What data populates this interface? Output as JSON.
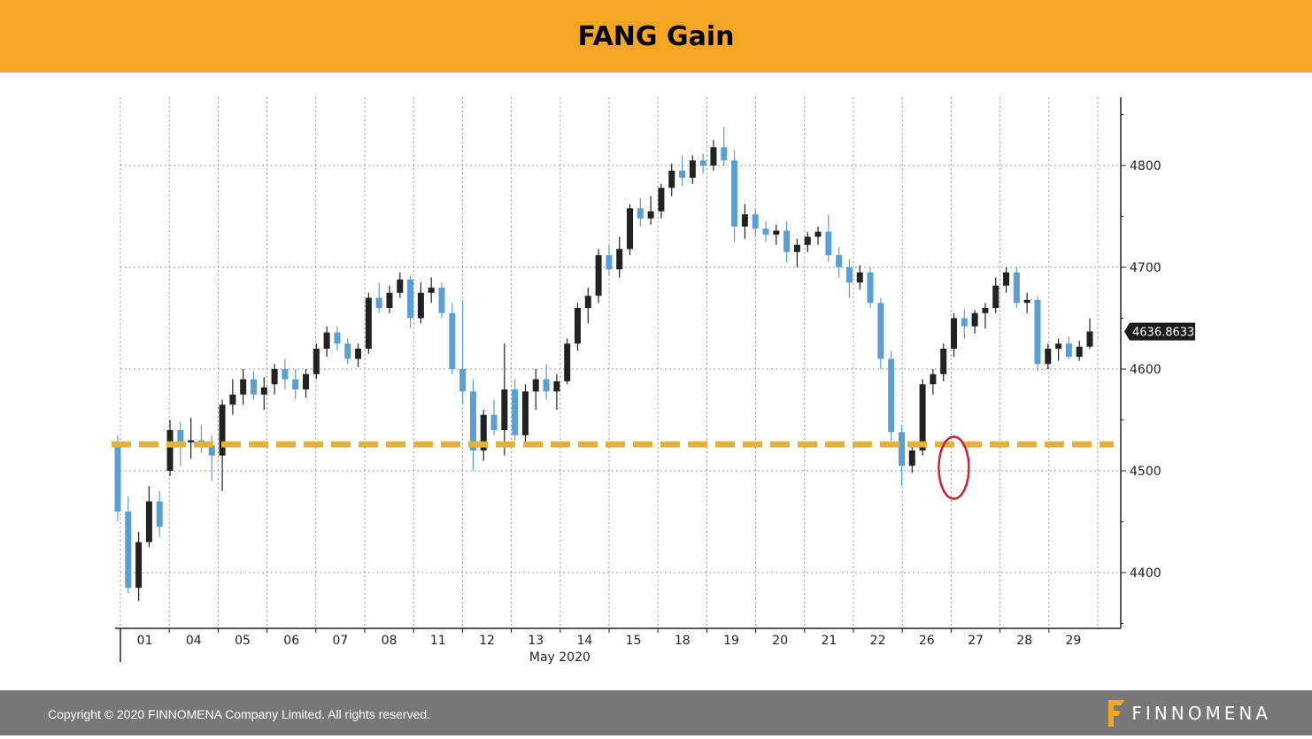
{
  "header": {
    "title": "FANG Gain"
  },
  "footer": {
    "copyright": "Copyright © 2020 FINNOMENA Company Limited. All rights reserved.",
    "logo_text": "FINNOMENA",
    "logo_color": "#f5a623"
  },
  "colors": {
    "header_bg": "#f5a623",
    "footer_bg": "#777777",
    "up_color": "#5a9fd4",
    "down_color": "#222222",
    "support_line": "#e3b23c",
    "highlight_circle": "#cc2233",
    "last_price_bg": "#1a1a1a"
  },
  "chart_data": {
    "type": "candlestick",
    "xlabel": "May 2020",
    "categories": [
      "01",
      "04",
      "05",
      "06",
      "07",
      "08",
      "11",
      "12",
      "13",
      "14",
      "15",
      "18",
      "19",
      "20",
      "21",
      "22",
      "26",
      "27",
      "28",
      "29"
    ],
    "ylim": [
      4345,
      4855
    ],
    "yticks": [
      4400,
      4500,
      4600,
      4700,
      4800
    ],
    "last_price_label": "4636.8633",
    "support_level": 4526,
    "highlight": {
      "category": "27",
      "value": 4503
    },
    "grid": true,
    "series": [
      {
        "values": [
          [
            4525,
            4535,
            4450,
            4460
          ],
          [
            4460,
            4475,
            4380,
            4385
          ],
          [
            4385,
            4440,
            4372,
            4430
          ],
          [
            4430,
            4485,
            4425,
            4470
          ],
          [
            4470,
            4480,
            4435,
            4445
          ],
          [
            4500,
            4550,
            4495,
            4540
          ],
          [
            4540,
            4548,
            4505,
            4528
          ],
          [
            4528,
            4552,
            4512,
            4530
          ],
          [
            4530,
            4545,
            4518,
            4525
          ],
          [
            4525,
            4535,
            4490,
            4515
          ],
          [
            4515,
            4570,
            4480,
            4565
          ],
          [
            4565,
            4590,
            4555,
            4575
          ],
          [
            4575,
            4600,
            4565,
            4590
          ],
          [
            4590,
            4598,
            4570,
            4575
          ],
          [
            4575,
            4592,
            4560,
            4582
          ],
          [
            4585,
            4605,
            4575,
            4600
          ],
          [
            4600,
            4610,
            4580,
            4590
          ],
          [
            4590,
            4600,
            4570,
            4580
          ],
          [
            4580,
            4600,
            4572,
            4595
          ],
          [
            4595,
            4625,
            4590,
            4620
          ],
          [
            4620,
            4642,
            4612,
            4636
          ],
          [
            4636,
            4642,
            4618,
            4625
          ],
          [
            4625,
            4630,
            4605,
            4610
          ],
          [
            4610,
            4625,
            4602,
            4620
          ],
          [
            4620,
            4675,
            4615,
            4670
          ],
          [
            4670,
            4685,
            4655,
            4660
          ],
          [
            4660,
            4682,
            4655,
            4675
          ],
          [
            4675,
            4695,
            4670,
            4688
          ],
          [
            4688,
            4692,
            4640,
            4650
          ],
          [
            4650,
            4685,
            4645,
            4675
          ],
          [
            4675,
            4690,
            4665,
            4680
          ],
          [
            4680,
            4685,
            4650,
            4655
          ],
          [
            4655,
            4665,
            4595,
            4600
          ],
          [
            4600,
            4668,
            4565,
            4578
          ],
          [
            4578,
            4590,
            4500,
            4520
          ],
          [
            4520,
            4560,
            4510,
            4555
          ],
          [
            4555,
            4570,
            4535,
            4540
          ],
          [
            4540,
            4625,
            4515,
            4580
          ],
          [
            4580,
            4590,
            4530,
            4535
          ],
          [
            4535,
            4585,
            4528,
            4578
          ],
          [
            4578,
            4600,
            4560,
            4590
          ],
          [
            4590,
            4605,
            4570,
            4578
          ],
          [
            4578,
            4595,
            4560,
            4588
          ],
          [
            4588,
            4630,
            4585,
            4625
          ],
          [
            4625,
            4665,
            4618,
            4660
          ],
          [
            4660,
            4680,
            4645,
            4672
          ],
          [
            4672,
            4718,
            4665,
            4712
          ],
          [
            4712,
            4722,
            4692,
            4698
          ],
          [
            4698,
            4730,
            4690,
            4718
          ],
          [
            4718,
            4762,
            4712,
            4758
          ],
          [
            4758,
            4768,
            4740,
            4748
          ],
          [
            4748,
            4770,
            4742,
            4755
          ],
          [
            4755,
            4782,
            4748,
            4778
          ],
          [
            4778,
            4802,
            4770,
            4795
          ],
          [
            4795,
            4810,
            4780,
            4788
          ],
          [
            4788,
            4810,
            4782,
            4805
          ],
          [
            4805,
            4812,
            4792,
            4800
          ],
          [
            4800,
            4825,
            4795,
            4818
          ],
          [
            4818,
            4838,
            4800,
            4805
          ],
          [
            4805,
            4815,
            4725,
            4740
          ],
          [
            4740,
            4762,
            4728,
            4752
          ],
          [
            4752,
            4758,
            4730,
            4738
          ],
          [
            4738,
            4745,
            4725,
            4732
          ],
          [
            4732,
            4742,
            4722,
            4736
          ],
          [
            4736,
            4745,
            4705,
            4715
          ],
          [
            4715,
            4728,
            4700,
            4722
          ],
          [
            4722,
            4735,
            4715,
            4730
          ],
          [
            4730,
            4740,
            4722,
            4735
          ],
          [
            4735,
            4752,
            4705,
            4712
          ],
          [
            4712,
            4720,
            4690,
            4700
          ],
          [
            4700,
            4708,
            4670,
            4685
          ],
          [
            4685,
            4702,
            4678,
            4695
          ],
          [
            4695,
            4700,
            4660,
            4665
          ],
          [
            4665,
            4670,
            4600,
            4610
          ],
          [
            4610,
            4618,
            4530,
            4538
          ],
          [
            4538,
            4545,
            4485,
            4505
          ],
          [
            4505,
            4525,
            4498,
            4520
          ],
          [
            4520,
            4590,
            4515,
            4585
          ],
          [
            4585,
            4600,
            4575,
            4595
          ],
          [
            4595,
            4625,
            4588,
            4620
          ],
          [
            4620,
            4655,
            4612,
            4650
          ],
          [
            4650,
            4658,
            4630,
            4642
          ],
          [
            4642,
            4658,
            4635,
            4655
          ],
          [
            4655,
            4665,
            4640,
            4660
          ],
          [
            4660,
            4690,
            4655,
            4682
          ],
          [
            4682,
            4700,
            4675,
            4695
          ],
          [
            4695,
            4700,
            4660,
            4665
          ],
          [
            4665,
            4675,
            4655,
            4668
          ],
          [
            4668,
            4672,
            4598,
            4605
          ],
          [
            4605,
            4625,
            4600,
            4620
          ],
          [
            4620,
            4630,
            4608,
            4625
          ],
          [
            4625,
            4632,
            4610,
            4612
          ],
          [
            4612,
            4628,
            4608,
            4622
          ],
          [
            4622,
            4650,
            4620,
            4637
          ]
        ]
      }
    ]
  }
}
